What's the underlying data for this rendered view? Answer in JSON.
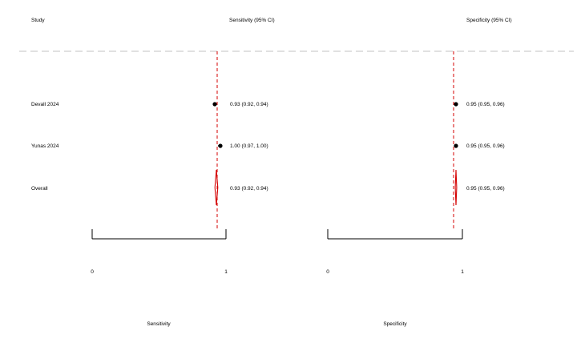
{
  "chart_data": {
    "type": "forest",
    "headers": {
      "study": "Study",
      "sensitivity": "Sensitivity (95% CI)",
      "specificity": "Specificity (95% CI)"
    },
    "studies": [
      {
        "name": "Devall 2024",
        "sensitivity": {
          "est": 0.93,
          "lo": 0.92,
          "hi": 0.94,
          "label": "0.93 (0.92, 0.94)"
        },
        "specificity": {
          "est": 0.95,
          "lo": 0.95,
          "hi": 0.96,
          "label": "0.95 (0.95, 0.96)"
        }
      },
      {
        "name": "Yunas 2024",
        "sensitivity": {
          "est": 1.0,
          "lo": 0.97,
          "hi": 1.0,
          "label": "1.00 (0.97, 1.00)"
        },
        "specificity": {
          "est": 0.95,
          "lo": 0.95,
          "hi": 0.96,
          "label": "0.95 (0.95, 0.96)"
        }
      }
    ],
    "overall": {
      "name": "Overall",
      "sensitivity": {
        "est": 0.93,
        "lo": 0.92,
        "hi": 0.94,
        "label": "0.93 (0.92, 0.94)"
      },
      "specificity": {
        "est": 0.95,
        "lo": 0.95,
        "hi": 0.96,
        "label": "0.95 (0.95, 0.96)"
      }
    },
    "reference_line": 1,
    "panels": [
      {
        "key": "sensitivity",
        "xlabel": "Sensitivity",
        "xlim": [
          0,
          1
        ],
        "ticks": [
          "0",
          "1"
        ]
      },
      {
        "key": "specificity",
        "xlabel": "Specificity",
        "xlim": [
          0,
          1
        ],
        "ticks": [
          "0",
          "1"
        ]
      }
    ],
    "colors": {
      "reference": "#d40000",
      "diamond": "#d40000",
      "separator": "#b0b0b0",
      "point": "#000000"
    }
  }
}
